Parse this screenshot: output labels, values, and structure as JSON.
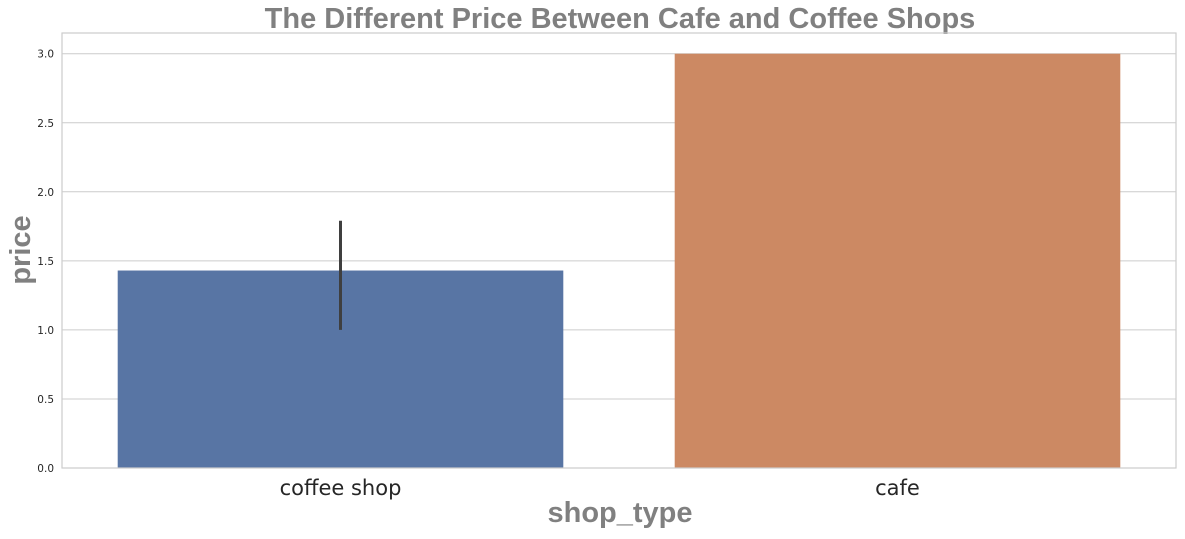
{
  "chart_data": {
    "type": "bar",
    "title": "The Different Price Between Cafe and Coffee Shops",
    "xlabel": "shop_type",
    "ylabel": "price",
    "categories": [
      "coffee shop",
      "cafe"
    ],
    "values": [
      1.43,
      3.0
    ],
    "error_bars": [
      [
        1.0,
        1.79
      ],
      null
    ],
    "colors": [
      "#5875a4",
      "#cc8963"
    ],
    "error_bar_color": "#3f3f3f",
    "ylim": [
      0,
      3.15
    ],
    "yticks": [
      0.0,
      0.5,
      1.0,
      1.5,
      2.0,
      2.5,
      3.0
    ],
    "ytick_labels": [
      "0.0",
      "0.5",
      "1.0",
      "1.5",
      "2.0",
      "2.5",
      "3.0"
    ],
    "grid": "horizontal",
    "legend": "none"
  }
}
